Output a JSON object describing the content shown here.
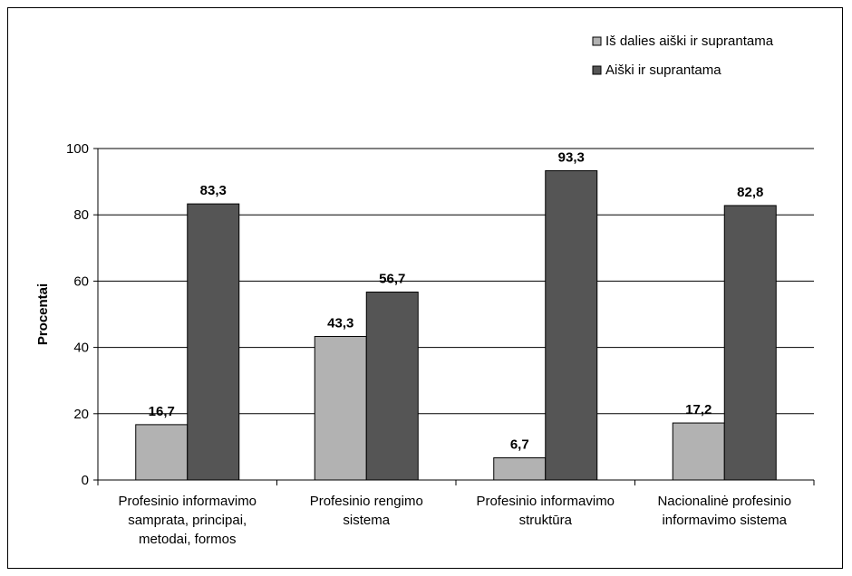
{
  "chart_data": {
    "type": "bar",
    "categories": [
      [
        "Profesinio informavimo",
        "samprata, principai,",
        "metodai, formos"
      ],
      [
        "Profesinio rengimo",
        "sistema"
      ],
      [
        "Profesinio informavimo",
        "struktūra"
      ],
      [
        "Nacionalinė profesinio",
        "informavimo sistema"
      ]
    ],
    "series": [
      {
        "name": "Iš dalies aiški ir suprantama",
        "color": "#b2b2b2",
        "values": [
          16.7,
          43.3,
          6.7,
          17.2
        ],
        "labels": [
          "16,7",
          "43,3",
          "6,7",
          "17,2"
        ]
      },
      {
        "name": "Aiški ir suprantama",
        "color": "#555555",
        "values": [
          83.3,
          56.7,
          93.3,
          82.8
        ],
        "labels": [
          "83,3",
          "56,7",
          "93,3",
          "82,8"
        ]
      }
    ],
    "ylabel": "Procentai",
    "ylim": [
      0,
      100
    ],
    "yticks": [
      0,
      20,
      40,
      60,
      80,
      100
    ],
    "grid": true,
    "legend": "top-right"
  }
}
